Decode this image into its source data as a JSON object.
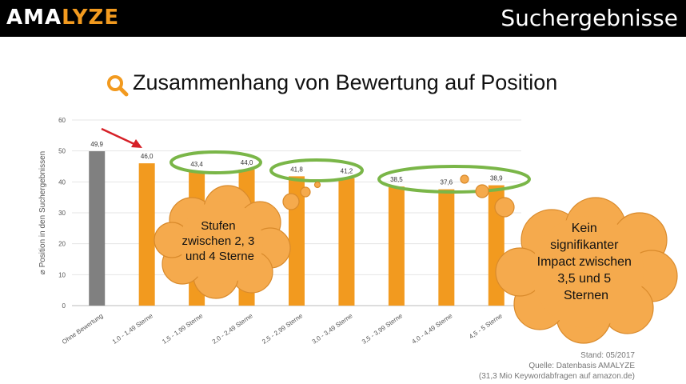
{
  "header": {
    "brand_prefix": "AMA",
    "brand_highlight": "LYZE",
    "section": "Suchergebnisse"
  },
  "colors": {
    "accent": "#f29a1f",
    "bar": "#f29a1f",
    "bar_baseline": "#808080",
    "highlight_outline": "#7ab648",
    "cloud": "#f5aa4d",
    "arrow": "#d62027"
  },
  "chart_data": {
    "type": "bar",
    "title": "Zusammenhang von Bewertung auf Position",
    "xlabel": "",
    "ylabel": "⌀ Position in den Suchergebnissen",
    "ylim": [
      0,
      60
    ],
    "yticks": [
      0,
      10,
      20,
      30,
      40,
      50,
      60
    ],
    "grid": true,
    "categories": [
      "Ohne Bewertung",
      "1,0 - 1,49 Sterne",
      "1,5 - 1,99 Sterne",
      "2,0 - 2,49 Sterne",
      "2,5 - 2,99 Sterne",
      "3,0 - 3,49 Sterne",
      "3,5 - 3,99 Sterne",
      "4,0 - 4,49 Sterne",
      "4,5 - 5 Sterne"
    ],
    "values": [
      49.9,
      46.0,
      43.4,
      44.0,
      41.8,
      41.2,
      38.5,
      37.6,
      38.9
    ],
    "value_labels": [
      "49,9",
      "46,0",
      "43,4",
      "44,0",
      "41,8",
      "41,2",
      "38,5",
      "37,6",
      "38,9"
    ],
    "annotations": {
      "cloud_left": [
        "Stufen",
        "zwischen 2, 3",
        "und 4 Sterne"
      ],
      "cloud_right": [
        "Kein",
        "signifikanter",
        "Impact zwischen",
        "3,5 und 5",
        "Sternen"
      ]
    }
  },
  "source": {
    "line1": "Stand: 05/2017",
    "line2": "Quelle: Datenbasis AMALYZE",
    "line3": "(31,3 Mio Keywordabfragen auf amazon.de)"
  }
}
